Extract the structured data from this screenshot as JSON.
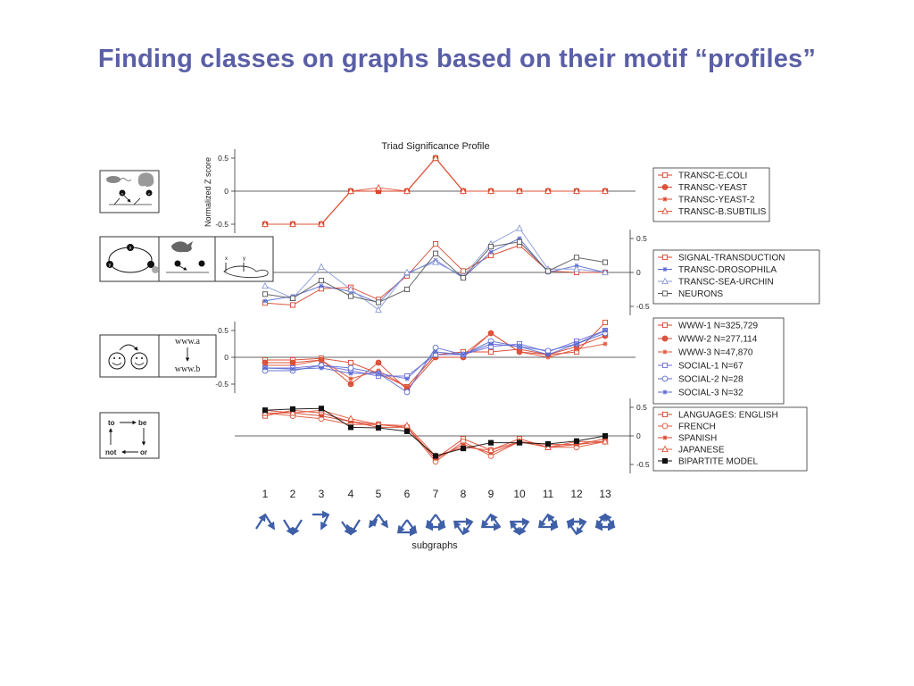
{
  "slide": {
    "title": "Finding classes on graphs based on their motif “profiles”"
  },
  "figure": {
    "title": "Triad Significance Profile",
    "ylabel": "Normalized Z score",
    "xlabel": "subgraphs",
    "icons": {
      "word_graph": {
        "to": "to",
        "be": "be",
        "or": "or",
        "not": "not"
      },
      "www": {
        "a": "www.a",
        "b": "www.b"
      },
      "neuron": {
        "x": "x",
        "y": "y"
      },
      "feedforward": {
        "x": "x",
        "y": "y",
        "z": "z"
      }
    }
  },
  "colors": {
    "title": "#5a5fa6",
    "red": "#d8432c",
    "orange": "#e0553a",
    "blue": "#5a6ad0",
    "lightblue": "#8a9ad8",
    "black": "#111111",
    "gray": "#555555",
    "motif": "#3f5fa8"
  },
  "chart_data": [
    {
      "type": "line",
      "panel": 1,
      "x": [
        1,
        2,
        3,
        4,
        5,
        6,
        7,
        8,
        9,
        10,
        11,
        12,
        13
      ],
      "yticks": [
        "0.5",
        "0",
        "-0.5"
      ],
      "ylim": [
        -0.6,
        0.6
      ],
      "series": [
        {
          "name": "TRANSC-E.COLI",
          "marker": "square",
          "color": "#d8432c",
          "values": [
            -0.5,
            -0.5,
            -0.5,
            0,
            0,
            0,
            0.5,
            0,
            0,
            0,
            0,
            0,
            0
          ]
        },
        {
          "name": "TRANSC-YEAST",
          "marker": "circle",
          "color": "#d8432c",
          "values": [
            -0.5,
            -0.5,
            -0.5,
            0,
            0,
            0,
            0.5,
            0,
            0,
            0,
            0,
            0,
            0
          ]
        },
        {
          "name": "TRANSC-YEAST-2",
          "marker": "star",
          "color": "#d8432c",
          "values": [
            -0.5,
            -0.5,
            -0.5,
            0,
            0,
            0,
            0.5,
            0,
            0,
            0,
            0,
            0,
            0
          ]
        },
        {
          "name": "TRANSC-B.SUBTILIS",
          "marker": "triangle",
          "color": "#e0553a",
          "values": [
            -0.5,
            -0.5,
            -0.5,
            0,
            0.05,
            0,
            0.5,
            0,
            0,
            0,
            0,
            0,
            0
          ]
        }
      ]
    },
    {
      "type": "line",
      "panel": 2,
      "x": [
        1,
        2,
        3,
        4,
        5,
        6,
        7,
        8,
        9,
        10,
        11,
        12,
        13
      ],
      "yticks": [
        "0.5",
        "0",
        "-0.5"
      ],
      "ylim": [
        -0.6,
        0.6
      ],
      "series": [
        {
          "name": "SIGNAL-TRANSDUCTION",
          "marker": "square",
          "color": "#d8432c",
          "values": [
            -0.45,
            -0.48,
            -0.24,
            -0.22,
            -0.4,
            -0.05,
            0.42,
            0.02,
            0.25,
            0.4,
            0.02,
            0.0,
            0.0
          ]
        },
        {
          "name": "TRANSC-DROSOPHILA",
          "marker": "star",
          "color": "#5a6ad0",
          "values": [
            -0.42,
            -0.35,
            -0.2,
            -0.28,
            -0.45,
            -0.02,
            0.18,
            -0.08,
            0.3,
            0.5,
            0.0,
            0.1,
            0.0
          ]
        },
        {
          "name": "TRANSC-SEA-URCHIN",
          "marker": "triangle",
          "color": "#8a9ad8",
          "values": [
            -0.2,
            -0.38,
            0.08,
            -0.25,
            -0.55,
            0.0,
            0.15,
            -0.05,
            0.42,
            0.65,
            0.05,
            0.05,
            0.0
          ]
        },
        {
          "name": "NEURONS",
          "marker": "square",
          "color": "#555555",
          "values": [
            -0.32,
            -0.38,
            -0.12,
            -0.35,
            -0.44,
            -0.25,
            0.28,
            -0.08,
            0.38,
            0.45,
            0.02,
            0.22,
            0.15
          ]
        }
      ]
    },
    {
      "type": "line",
      "panel": 3,
      "x": [
        1,
        2,
        3,
        4,
        5,
        6,
        7,
        8,
        9,
        10,
        11,
        12,
        13
      ],
      "yticks": [
        "0.5",
        "0",
        "-0.5"
      ],
      "ylim": [
        -0.6,
        0.6
      ],
      "series": [
        {
          "name": "WWW-1 N=325,729",
          "marker": "square",
          "color": "#d8432c",
          "values": [
            -0.05,
            -0.05,
            -0.02,
            -0.1,
            -0.3,
            -0.55,
            0.05,
            0.1,
            0.1,
            0.15,
            0.05,
            0.1,
            0.65
          ]
        },
        {
          "name": "WWW-2 N=277,114",
          "marker": "circle",
          "color": "#d8432c",
          "values": [
            -0.1,
            -0.1,
            -0.05,
            -0.5,
            -0.1,
            -0.6,
            0.0,
            0.0,
            0.45,
            0.1,
            0.05,
            0.2,
            0.4
          ]
        },
        {
          "name": "WWW-3 N=47,870",
          "marker": "star",
          "color": "#e0553a",
          "values": [
            -0.15,
            -0.15,
            -0.05,
            -0.4,
            -0.25,
            -0.55,
            0.05,
            0.05,
            0.45,
            0.1,
            0.0,
            0.15,
            0.25
          ]
        },
        {
          "name": "SOCIAL-1 N=67",
          "marker": "square",
          "color": "#6a6ad8",
          "values": [
            -0.2,
            -0.2,
            -0.15,
            -0.25,
            -0.35,
            -0.35,
            0.05,
            0.05,
            0.2,
            0.25,
            0.1,
            0.3,
            0.5
          ]
        },
        {
          "name": "SOCIAL-2 N=28",
          "marker": "circle",
          "color": "#5a6ad0",
          "values": [
            -0.25,
            -0.25,
            -0.15,
            -0.2,
            -0.3,
            -0.65,
            0.18,
            0.05,
            0.3,
            0.2,
            0.12,
            0.25,
            0.45
          ]
        },
        {
          "name": "SOCIAL-3 N=32",
          "marker": "star",
          "color": "#5a6ad0",
          "values": [
            -0.2,
            -0.22,
            -0.2,
            -0.3,
            -0.3,
            -0.4,
            0.1,
            0.05,
            0.25,
            0.2,
            0.05,
            0.25,
            0.5
          ]
        }
      ]
    },
    {
      "type": "line",
      "panel": 4,
      "x": [
        1,
        2,
        3,
        4,
        5,
        6,
        7,
        8,
        9,
        10,
        11,
        12,
        13
      ],
      "yticks": [
        "0.5",
        "0",
        "-0.5"
      ],
      "ylim": [
        -0.6,
        0.6
      ],
      "series": [
        {
          "name": "LANGUAGES: ENGLISH",
          "marker": "square",
          "color": "#d8432c",
          "values": [
            0.35,
            0.45,
            0.4,
            0.25,
            0.2,
            0.15,
            -0.4,
            -0.05,
            -0.25,
            -0.05,
            -0.2,
            -0.15,
            -0.1
          ]
        },
        {
          "name": "FRENCH",
          "marker": "circle",
          "color": "#e0553a",
          "values": [
            0.4,
            0.35,
            0.3,
            0.2,
            0.2,
            0.15,
            -0.45,
            -0.1,
            -0.35,
            -0.1,
            -0.2,
            -0.2,
            -0.1
          ]
        },
        {
          "name": "SPANISH",
          "marker": "star",
          "color": "#d8432c",
          "values": [
            0.45,
            0.4,
            0.35,
            0.25,
            0.15,
            0.15,
            -0.4,
            -0.15,
            -0.3,
            -0.1,
            -0.15,
            -0.15,
            -0.05
          ]
        },
        {
          "name": "JAPANESE",
          "marker": "triangle",
          "color": "#e0553a",
          "values": [
            0.4,
            0.4,
            0.45,
            0.3,
            0.2,
            0.18,
            -0.35,
            -0.2,
            -0.25,
            -0.1,
            -0.2,
            -0.1,
            -0.1
          ]
        },
        {
          "name": "BIPARTITE MODEL",
          "marker": "filled-square",
          "color": "#111111",
          "values": [
            0.45,
            0.47,
            0.48,
            0.15,
            0.14,
            0.08,
            -0.35,
            -0.22,
            -0.12,
            -0.12,
            -0.14,
            -0.09,
            0.0
          ]
        }
      ]
    }
  ],
  "subgraph_labels": [
    "1",
    "2",
    "3",
    "4",
    "5",
    "6",
    "7",
    "8",
    "9",
    "10",
    "11",
    "12",
    "13"
  ]
}
